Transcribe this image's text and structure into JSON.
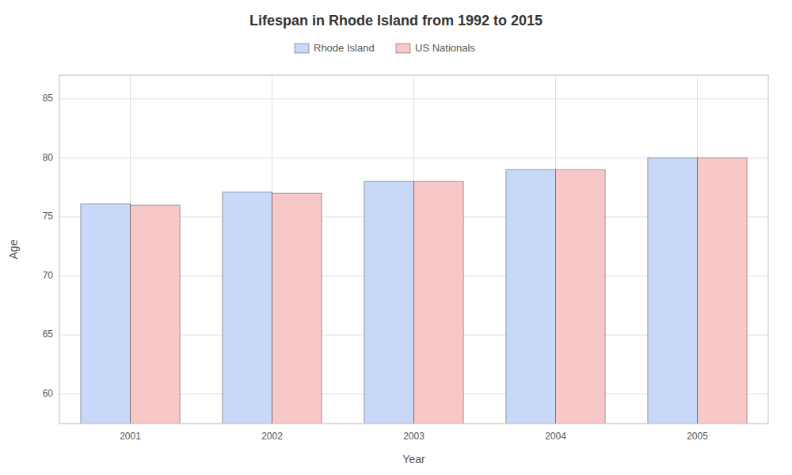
{
  "chart_data": {
    "type": "bar",
    "title": "Lifespan in Rhode Island from 1992 to 2015",
    "xlabel": "Year",
    "ylabel": "Age",
    "categories": [
      "2001",
      "2002",
      "2003",
      "2004",
      "2005"
    ],
    "series": [
      {
        "name": "Rhode Island",
        "color": "#c8d8f8",
        "values": [
          76.1,
          77.1,
          78.0,
          79.0,
          80.0
        ]
      },
      {
        "name": "US Nationals",
        "color": "#f8c8c8",
        "values": [
          76.0,
          77.0,
          78.0,
          79.0,
          80.0
        ]
      }
    ],
    "ylim": [
      57.5,
      87
    ],
    "yticks": [
      60,
      65,
      70,
      75,
      80,
      85
    ],
    "grid": true,
    "legend": "top"
  }
}
